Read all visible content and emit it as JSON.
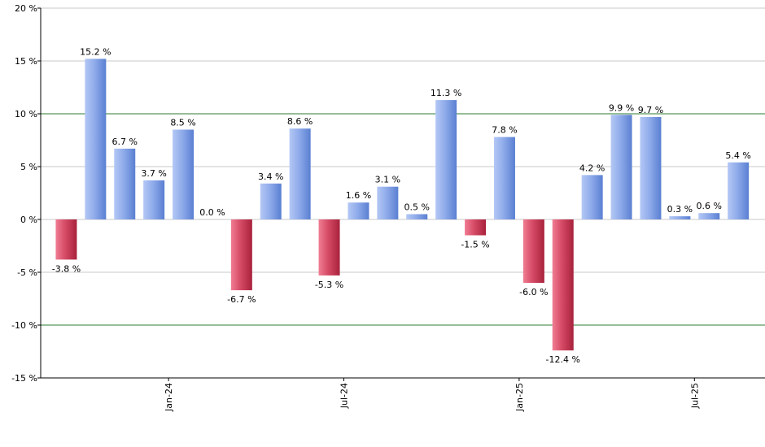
{
  "chart_data": {
    "type": "bar",
    "title": "",
    "xlabel": "",
    "ylabel": "",
    "ylim": [
      -15,
      20
    ],
    "y_ticks": [
      20,
      15,
      10,
      5,
      0,
      -5,
      -10,
      -15
    ],
    "y_tick_suffix": " %",
    "highlight_lines": [
      10,
      -10
    ],
    "x_tick_labels": [
      {
        "label": "Jan-24",
        "index": 3.5
      },
      {
        "label": "Jul-24",
        "index": 9.5
      },
      {
        "label": "Jan-25",
        "index": 15.5
      },
      {
        "label": "Jul-25",
        "index": 21.5
      }
    ],
    "values": [
      -3.8,
      15.2,
      6.7,
      3.7,
      8.5,
      0.0,
      -6.7,
      3.4,
      8.6,
      -5.3,
      1.6,
      3.1,
      0.5,
      11.3,
      -1.5,
      7.8,
      -6.0,
      -12.4,
      4.2,
      9.9,
      9.7,
      0.3,
      0.6,
      5.4
    ],
    "labels": [
      "-3.8 %",
      "15.2 %",
      "6.7 %",
      "3.7 %",
      "8.5 %",
      "0.0 %",
      "-6.7 %",
      "3.4 %",
      "8.6 %",
      "-5.3 %",
      "1.6 %",
      "3.1 %",
      "0.5 %",
      "11.3 %",
      "-1.5 %",
      "7.8 %",
      "-6.0 %",
      "-12.4 %",
      "4.2 %",
      "9.9 %",
      "9.7 %",
      "0.3 %",
      "0.6 %",
      "5.4 %"
    ],
    "colors": {
      "positive_light": "#b4c8f5",
      "positive_dark": "#5a7fd2",
      "negative_light": "#f07d93",
      "negative_dark": "#a8223c",
      "grid": "#c8c8c8",
      "highlight": "#2e7d32",
      "axis": "#000000"
    }
  }
}
